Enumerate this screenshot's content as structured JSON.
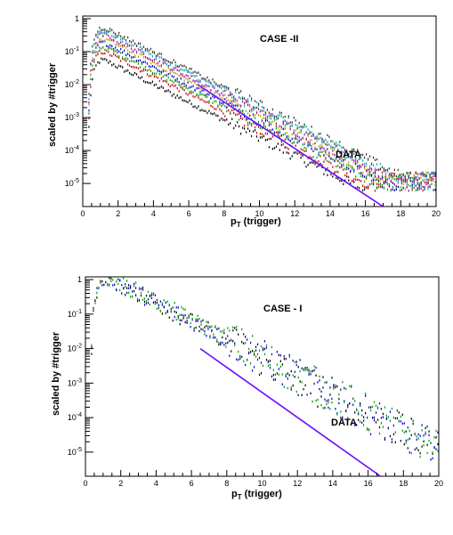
{
  "colors": {
    "fit_line": "#6a0dff",
    "series_colors": [
      "#000000",
      "#cc0000",
      "#00a000",
      "#0000cc",
      "#aaaa00",
      "#aa00aa",
      "#00aaaa",
      "#333333"
    ]
  },
  "chart_data": [
    {
      "type": "scatter",
      "title": "",
      "annotation_case": "CASE -II",
      "annotation_data": "DATA",
      "xlabel": "p",
      "xlabel_sub": "T",
      "xlabel_rest": " (trigger)",
      "ylabel": "scaled by #trigger",
      "xlim": [
        0,
        20
      ],
      "ylim": [
        2e-06,
        1.2
      ],
      "yscale": "log",
      "grid": false,
      "x_ticks": [
        "0",
        "2",
        "4",
        "6",
        "8",
        "10",
        "12",
        "14",
        "16",
        "18",
        "20"
      ],
      "y_ticks": [
        {
          "base": "10",
          "exp": "-5",
          "value": 1e-05
        },
        {
          "base": "10",
          "exp": "-4",
          "value": 0.0001
        },
        {
          "base": "10",
          "exp": "-3",
          "value": 0.001
        },
        {
          "base": "10",
          "exp": "-2",
          "value": 0.01
        },
        {
          "base": "10",
          "exp": "-1",
          "value": 0.1
        },
        {
          "base": "1",
          "exp": "",
          "value": 1
        }
      ],
      "series": [
        {
          "color_index": 0,
          "scale": 0.022
        },
        {
          "color_index": 1,
          "scale": 0.04
        },
        {
          "color_index": 2,
          "scale": 0.055
        },
        {
          "color_index": 3,
          "scale": 0.075
        },
        {
          "color_index": 4,
          "scale": 0.1
        },
        {
          "color_index": 5,
          "scale": 0.13
        },
        {
          "color_index": 6,
          "scale": 0.17
        },
        {
          "color_index": 7,
          "scale": 0.21
        }
      ],
      "fit_line": {
        "x": [
          6.5,
          17
        ],
        "y": [
          0.01,
          2e-06
        ]
      }
    },
    {
      "type": "scatter",
      "title": "",
      "annotation_case": "CASE - I",
      "annotation_data": "DATA",
      "xlabel": "p",
      "xlabel_sub": "T",
      "xlabel_rest": " (trigger)",
      "ylabel": "scaled by #trigger",
      "xlim": [
        0,
        20
      ],
      "ylim": [
        2e-06,
        1.2
      ],
      "yscale": "log",
      "grid": false,
      "x_ticks": [
        "0",
        "2",
        "4",
        "6",
        "8",
        "10",
        "12",
        "14",
        "16",
        "18",
        "20"
      ],
      "y_ticks": [
        {
          "base": "10",
          "exp": "-5",
          "value": 1e-05
        },
        {
          "base": "10",
          "exp": "-4",
          "value": 0.0001
        },
        {
          "base": "10",
          "exp": "-3",
          "value": 0.001
        },
        {
          "base": "10",
          "exp": "-2",
          "value": 0.01
        },
        {
          "base": "10",
          "exp": "-1",
          "value": 0.1
        },
        {
          "base": "1",
          "exp": "",
          "value": 1
        }
      ],
      "series": [
        {
          "color_index": 0,
          "scale": 0.45
        },
        {
          "color_index": 3,
          "scale": 0.48
        },
        {
          "color_index": 2,
          "scale": 0.5
        }
      ],
      "fit_line": {
        "x": [
          6.5,
          16.7
        ],
        "y": [
          0.01,
          2e-06
        ]
      }
    }
  ]
}
